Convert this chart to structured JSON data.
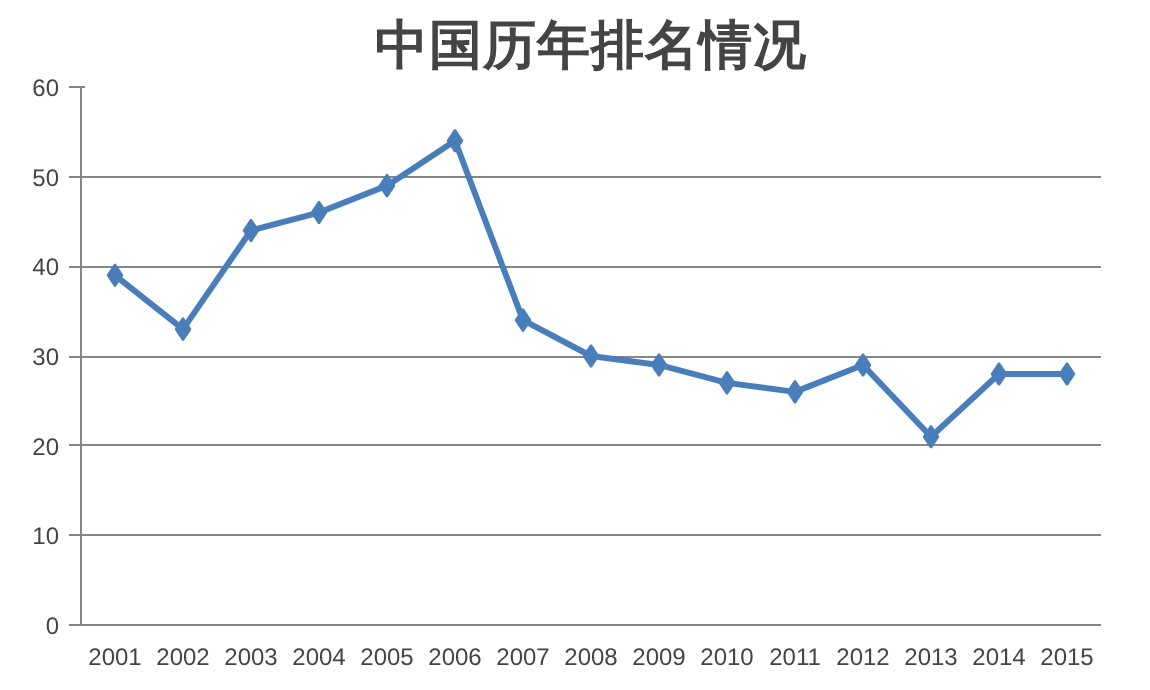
{
  "chart_data": {
    "type": "line",
    "title": "中国历年排名情况",
    "categories": [
      "2001",
      "2002",
      "2003",
      "2004",
      "2005",
      "2006",
      "2007",
      "2008",
      "2009",
      "2010",
      "2011",
      "2012",
      "2013",
      "2014",
      "2015"
    ],
    "series": [
      {
        "color": "#4a7ebb",
        "values": [
          39,
          33,
          44,
          46,
          49,
          54,
          34,
          30,
          29,
          27,
          26,
          29,
          21,
          28,
          28
        ]
      }
    ],
    "ylim": [
      0,
      60
    ],
    "yticks": [
      0,
      10,
      20,
      30,
      40,
      50,
      60
    ],
    "grid": "y",
    "marker": "diamond",
    "line_style": "solid"
  }
}
